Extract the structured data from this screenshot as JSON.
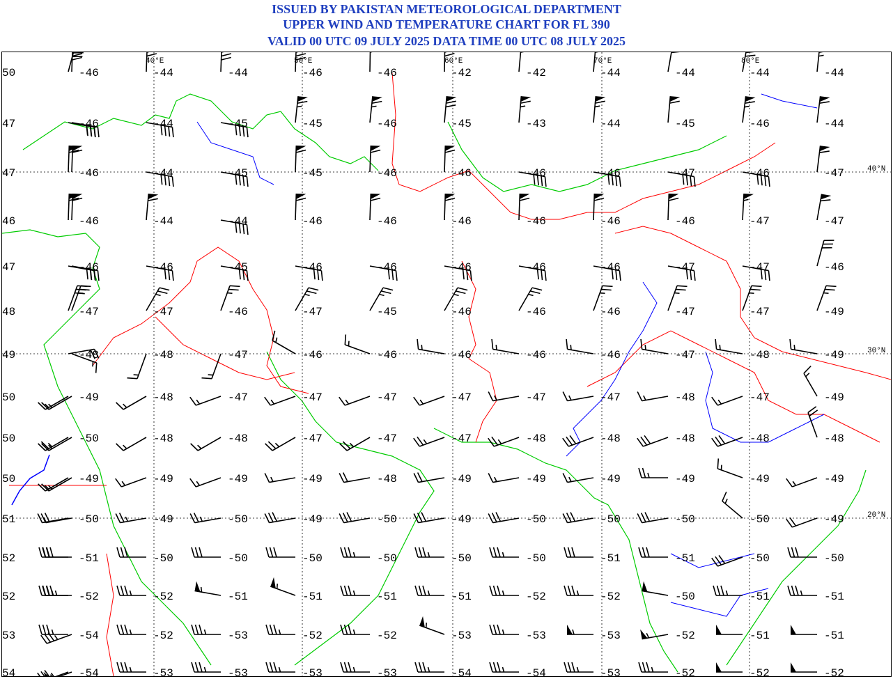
{
  "header": {
    "line1": "ISSUED BY PAKISTAN METEOROLOGICAL DEPARTMENT",
    "line2": "UPPER WIND AND TEMPERATURE CHART FOR FL 390",
    "line3": "VALID 00 UTC 09 JULY 2025 DATA TIME 00 UTC 08 JULY 2025"
  },
  "colors": {
    "title": "#1f3fbf",
    "border": "#ff0000",
    "coast": "#00cc00",
    "river": "#0000ff",
    "grid": "#000000"
  },
  "map": {
    "lon_labels": [
      "40°E",
      "50°E",
      "60°E",
      "70°E",
      "80°E"
    ],
    "lat_labels": [
      {
        "label": "40°N",
        "row": 2
      },
      {
        "label": "30°N",
        "row": 6
      },
      {
        "label": "20°N",
        "row": 10
      }
    ],
    "rows": [
      {
        "temps": [
          "50",
          "-46",
          "-44",
          "-44",
          "-46",
          "-46",
          "-42",
          "-42",
          "-44",
          "-44",
          "-44",
          "-44"
        ],
        "winds": [
          [
            15,
            70
          ],
          [
            2,
            80
          ],
          [
            2,
            70
          ],
          [
            2,
            80
          ],
          [
            2,
            80
          ],
          [
            1,
            60
          ],
          [
            1,
            70
          ],
          [
            5,
            60
          ],
          [
            5,
            60
          ],
          [
            10,
            60
          ],
          [
            10,
            70
          ],
          [
            6,
            65
          ]
        ]
      },
      {
        "temps": [
          "47",
          "-46",
          "-44",
          "-45",
          "-45",
          "-46",
          "-45",
          "-43",
          "-44",
          "-45",
          "-46",
          "-44"
        ],
        "winds": [
          [
            100,
            30
          ],
          [
            100,
            40
          ],
          [
            100,
            40
          ],
          [
            100,
            40
          ],
          [
            6,
            65
          ],
          [
            6,
            65
          ],
          [
            5,
            70
          ],
          [
            5,
            65
          ],
          [
            5,
            65
          ],
          [
            5,
            60
          ],
          [
            7,
            65
          ],
          [
            7,
            60
          ]
        ]
      },
      {
        "temps": [
          "47",
          "-46",
          "-44",
          "-45",
          "-45",
          "-46",
          "-46",
          "-46",
          "-46",
          "-47",
          "-46",
          "-47"
        ],
        "winds": [
          [
            2,
            60
          ],
          [
            2,
            60
          ],
          [
            100,
            40
          ],
          [
            100,
            40
          ],
          [
            2,
            60
          ],
          [
            2,
            60
          ],
          [
            2,
            60
          ],
          [
            100,
            40
          ],
          [
            100,
            40
          ],
          [
            100,
            40
          ],
          [
            100,
            40
          ],
          [
            7,
            60
          ]
        ]
      },
      {
        "temps": [
          "46",
          "-46",
          "-44",
          "-44",
          "-46",
          "-46",
          "-46",
          "-46",
          "-46",
          "-46",
          "-47",
          "-47"
        ],
        "winds": [
          [
            2,
            60
          ],
          [
            2,
            60
          ],
          [
            5,
            60
          ],
          [
            100,
            40
          ],
          [
            2,
            60
          ],
          [
            2,
            60
          ],
          [
            2,
            60
          ],
          [
            2,
            60
          ],
          [
            2,
            60
          ],
          [
            2,
            60
          ],
          [
            3,
            55
          ],
          [
            10,
            60
          ]
        ]
      },
      {
        "temps": [
          "47",
          "-46",
          "-46",
          "-45",
          "-46",
          "-46",
          "-46",
          "-46",
          "-46",
          "-47",
          "-47",
          "-46"
        ],
        "winds": [
          [
            100,
            30
          ],
          [
            100,
            30
          ],
          [
            100,
            30
          ],
          [
            100,
            30
          ],
          [
            100,
            30
          ],
          [
            100,
            30
          ],
          [
            100,
            30
          ],
          [
            100,
            30
          ],
          [
            100,
            30
          ],
          [
            100,
            30
          ],
          [
            100,
            30
          ],
          [
            15,
            30
          ]
        ]
      },
      {
        "temps": [
          "48",
          "-47",
          "-47",
          "-46",
          "-47",
          "-45",
          "-46",
          "-46",
          "-46",
          "-47",
          "-47",
          "-49"
        ],
        "winds": [
          [
            20,
            30
          ],
          [
            20,
            25
          ],
          [
            30,
            25
          ],
          [
            20,
            25
          ],
          [
            30,
            25
          ],
          [
            30,
            25
          ],
          [
            30,
            25
          ],
          [
            30,
            25
          ],
          [
            20,
            25
          ],
          [
            20,
            25
          ],
          [
            20,
            25
          ],
          [
            20,
            25
          ]
        ]
      },
      {
        "temps": [
          "49",
          "-48",
          "-48",
          "-47",
          "-46",
          "-46",
          "-46",
          "-46",
          "-46",
          "-47",
          "-48",
          "-49"
        ],
        "winds": [
          [
            80,
            20
          ],
          [
            110,
            15
          ],
          [
            200,
            15
          ],
          [
            200,
            15
          ],
          [
            300,
            15
          ],
          [
            290,
            15
          ],
          [
            280,
            15
          ],
          [
            280,
            15
          ],
          [
            280,
            15
          ],
          [
            280,
            15
          ],
          [
            280,
            15
          ],
          [
            280,
            15
          ]
        ]
      },
      {
        "temps": [
          "50",
          "-49",
          "-48",
          "-47",
          "-47",
          "-47",
          "-47",
          "-47",
          "-47",
          "-48",
          "-47",
          "-49"
        ],
        "winds": [
          [
            240,
            15
          ],
          [
            240,
            15
          ],
          [
            240,
            15
          ],
          [
            250,
            15
          ],
          [
            250,
            15
          ],
          [
            250,
            15
          ],
          [
            250,
            15
          ],
          [
            260,
            15
          ],
          [
            260,
            15
          ],
          [
            260,
            15
          ],
          [
            250,
            15
          ],
          [
            330,
            15
          ]
        ]
      },
      {
        "temps": [
          "50",
          "-50",
          "-48",
          "-48",
          "-47",
          "-47",
          "-47",
          "-48",
          "-48",
          "-48",
          "-48",
          "-48"
        ],
        "winds": [
          [
            240,
            25
          ],
          [
            240,
            15
          ],
          [
            240,
            15
          ],
          [
            240,
            15
          ],
          [
            240,
            25
          ],
          [
            240,
            25
          ],
          [
            250,
            25
          ],
          [
            250,
            25
          ],
          [
            250,
            30
          ],
          [
            250,
            30
          ],
          [
            250,
            30
          ],
          [
            340,
            20
          ]
        ]
      },
      {
        "temps": [
          "50",
          "-49",
          "-49",
          "-49",
          "-49",
          "-48",
          "-49",
          "-49",
          "-49",
          "-49",
          "-49",
          "-49"
        ],
        "winds": [
          [
            240,
            15
          ],
          [
            240,
            15
          ],
          [
            250,
            15
          ],
          [
            250,
            15
          ],
          [
            260,
            15
          ],
          [
            260,
            20
          ],
          [
            260,
            20
          ],
          [
            260,
            15
          ],
          [
            260,
            15
          ],
          [
            270,
            25
          ],
          [
            290,
            15
          ],
          [
            250,
            15
          ]
        ]
      },
      {
        "temps": [
          "51",
          "-50",
          "-49",
          "-50",
          "-49",
          "-50",
          "-49",
          "-50",
          "-50",
          "-50",
          "-50",
          "-49"
        ],
        "winds": [
          [
            260,
            15
          ],
          [
            260,
            20
          ],
          [
            260,
            25
          ],
          [
            260,
            25
          ],
          [
            260,
            30
          ],
          [
            260,
            30
          ],
          [
            260,
            30
          ],
          [
            260,
            30
          ],
          [
            260,
            30
          ],
          [
            260,
            30
          ],
          [
            310,
            15
          ],
          [
            250,
            20
          ]
        ]
      },
      {
        "temps": [
          "52",
          "-51",
          "-50",
          "-50",
          "-50",
          "-50",
          "-50",
          "-50",
          "-51",
          "-51",
          "-50",
          "-50"
        ],
        "winds": [
          [
            270,
            30
          ],
          [
            270,
            30
          ],
          [
            270,
            30
          ],
          [
            270,
            30
          ],
          [
            270,
            30
          ],
          [
            270,
            35
          ],
          [
            270,
            35
          ],
          [
            270,
            35
          ],
          [
            270,
            30
          ],
          [
            270,
            30
          ],
          [
            250,
            30
          ],
          [
            270,
            30
          ]
        ]
      },
      {
        "temps": [
          "52",
          "-52",
          "-52",
          "-51",
          "-51",
          "-51",
          "-51",
          "-52",
          "-52",
          "-50",
          "-51",
          "-51"
        ],
        "winds": [
          [
            270,
            35
          ],
          [
            270,
            35
          ],
          [
            270,
            35
          ],
          [
            280,
            55
          ],
          [
            290,
            55
          ],
          [
            270,
            35
          ],
          [
            270,
            35
          ],
          [
            270,
            35
          ],
          [
            270,
            35
          ],
          [
            280,
            50
          ],
          [
            270,
            35
          ],
          [
            270,
            35
          ]
        ]
      },
      {
        "temps": [
          "53",
          "-54",
          "-52",
          "-53",
          "-52",
          "-52",
          "-53",
          "-53",
          "-53",
          "-52",
          "-51",
          "-51"
        ],
        "winds": [
          [
            270,
            35
          ],
          [
            250,
            35
          ],
          [
            270,
            35
          ],
          [
            270,
            35
          ],
          [
            270,
            35
          ],
          [
            270,
            35
          ],
          [
            290,
            55
          ],
          [
            270,
            35
          ],
          [
            270,
            55
          ],
          [
            260,
            55
          ],
          [
            270,
            50
          ],
          [
            270,
            50
          ]
        ]
      },
      {
        "temps": [
          "54",
          "-54",
          "-53",
          "-53",
          "-53",
          "-53",
          "-54",
          "-54",
          "-53",
          "-52",
          "-52",
          "-52"
        ],
        "winds": [
          [
            250,
            35
          ],
          [
            250,
            55
          ],
          [
            270,
            35
          ],
          [
            270,
            35
          ],
          [
            270,
            35
          ],
          [
            270,
            35
          ],
          [
            270,
            35
          ],
          [
            270,
            35
          ],
          [
            270,
            35
          ],
          [
            270,
            35
          ],
          [
            270,
            50
          ],
          [
            270,
            50
          ]
        ]
      }
    ]
  }
}
